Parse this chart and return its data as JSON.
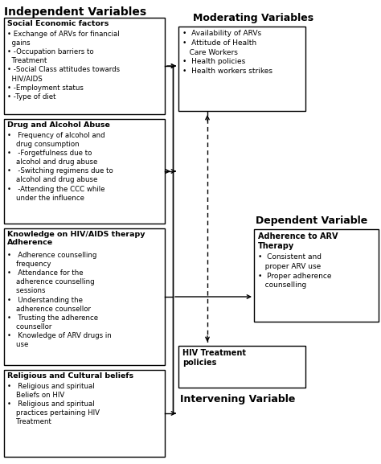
{
  "title": "Independent Variables",
  "box1_title": "Social Economic factors",
  "box1_items": "• Exchange of ARVs for financial\n  gains\n• -Occupation barriers to\n  Treatment\n• -Social Class attitudes towards\n  HIV/AIDS\n• -Employment status\n• -Type of diet",
  "box2_title": "Drug and Alcohol Abuse",
  "box2_items": "•   Frequency of alcohol and\n    drug consumption\n•   -Forgetfulness due to\n    alcohol and drug abuse\n•   -Switching regimens due to\n    alcohol and drug abuse\n•   -Attending the CCC while\n    under the influence",
  "box3_title": "Knowledge on HIV/AIDS therapy\nAdherence",
  "box3_items": "•   Adherence counselling\n    frequency\n•   Attendance for the\n    adherence counselling\n    sessions\n•   Understanding the\n    adherence counsellor\n•   Trusting the adherence\n    counsellor\n•   Knowledge of ARV drugs in\n    use",
  "box4_title": "Religious and Cultural beliefs",
  "box4_items": "•   Religious and spiritual\n    Beliefs on HIV\n•   Religious and spiritual\n    practices pertaining HIV\n    Treatment",
  "mod_title": "Moderating Variables",
  "mod_items": "•  Availability of ARVs\n•  Attitude of Health\n   Care Workers\n•  Health policies\n•  Health workers strikes",
  "dep_title": "Dependent Variable",
  "dep_box_title": "Adherence to ARV\nTherapy",
  "dep_items": "•  Consistent and\n   proper ARV use\n•  Proper adherence\n   counselling",
  "int_title": "Intervening Variable",
  "int_box_title": "HIV Treatment\npolicies",
  "bg_color": "#ffffff",
  "text_color": "#000000"
}
